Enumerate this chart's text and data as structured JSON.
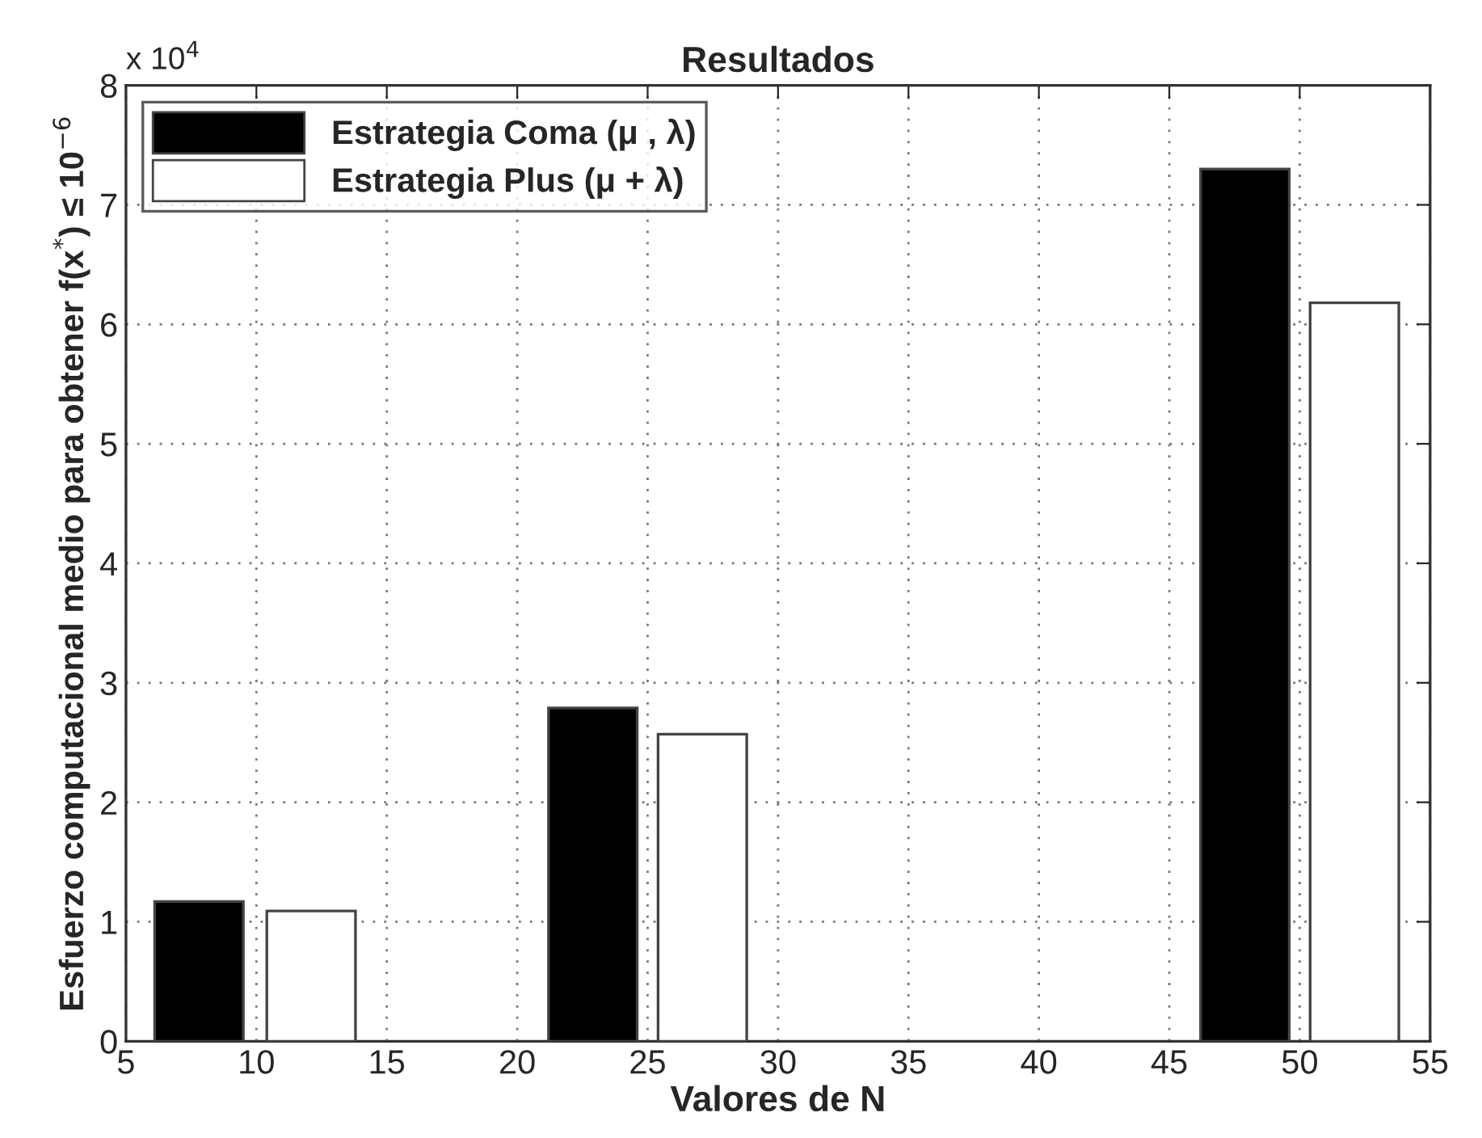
{
  "chart_data": {
    "type": "bar",
    "title": "Resultados",
    "xlabel": "Valores de N",
    "ylabel": "Esfuerzo computacional medio para obtener f(x$^{*}$) ≤ 10$^{−6}$",
    "series": [
      {
        "name": "Estrategia Coma (μ , λ)",
        "color": "#000000",
        "x": [
          7.8,
          22.9,
          47.9
        ],
        "values": [
          1.17,
          2.79,
          7.3
        ]
      },
      {
        "name": "Estrategia Plus (μ + λ)",
        "color": "#ffffff",
        "x": [
          12.1,
          27.1,
          52.1
        ],
        "values": [
          1.09,
          2.57,
          6.18
        ]
      }
    ],
    "xlim": [
      5,
      55
    ],
    "xticks": [
      5,
      10,
      15,
      20,
      25,
      30,
      35,
      40,
      45,
      50,
      55
    ],
    "ylim": [
      0,
      8
    ],
    "yticks": [
      0,
      1,
      2,
      3,
      4,
      5,
      6,
      7,
      8
    ],
    "annotations": [
      "x 10$^{4}$"
    ],
    "grid": true,
    "legend": "top left"
  }
}
